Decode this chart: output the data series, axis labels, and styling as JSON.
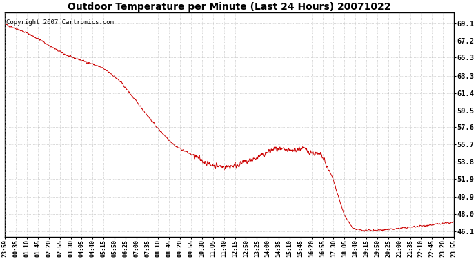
{
  "title": "Outdoor Temperature per Minute (Last 24 Hours) 20071022",
  "copyright_text": "Copyright 2007 Cartronics.com",
  "line_color": "#cc0000",
  "background_color": "#ffffff",
  "plot_bg_color": "#ffffff",
  "grid_color": "#aaaaaa",
  "y_ticks": [
    46.1,
    48.0,
    49.9,
    51.9,
    53.8,
    55.7,
    57.6,
    59.5,
    61.4,
    63.3,
    65.3,
    67.2,
    69.1
  ],
  "ylim": [
    45.5,
    70.3
  ],
  "x_tick_labels": [
    "23:59",
    "00:35",
    "01:10",
    "01:45",
    "02:20",
    "02:55",
    "03:30",
    "04:05",
    "04:40",
    "05:15",
    "05:50",
    "06:25",
    "07:00",
    "07:35",
    "08:10",
    "08:45",
    "09:20",
    "09:55",
    "10:30",
    "11:05",
    "11:40",
    "12:15",
    "12:50",
    "13:25",
    "14:00",
    "14:35",
    "15:10",
    "15:45",
    "16:20",
    "16:55",
    "17:30",
    "18:05",
    "18:40",
    "19:15",
    "19:50",
    "20:25",
    "21:00",
    "21:35",
    "22:10",
    "22:45",
    "23:20",
    "23:55"
  ],
  "n_points": 1440,
  "keypoints_t": [
    0,
    0.02,
    0.05,
    0.08,
    0.11,
    0.14,
    0.17,
    0.195,
    0.215,
    0.235,
    0.26,
    0.3,
    0.34,
    0.38,
    0.42,
    0.455,
    0.49,
    0.52,
    0.56,
    0.6,
    0.635,
    0.66,
    0.685,
    0.705,
    0.73,
    0.755,
    0.775,
    0.8,
    0.85,
    1.0
  ],
  "keypoints_v": [
    69.0,
    68.6,
    68.0,
    67.2,
    66.3,
    65.5,
    65.0,
    64.6,
    64.2,
    63.6,
    62.5,
    60.0,
    57.5,
    55.5,
    54.5,
    53.5,
    53.2,
    53.5,
    54.2,
    55.2,
    55.0,
    55.3,
    54.8,
    54.5,
    52.0,
    48.0,
    46.4,
    46.2,
    46.3,
    47.1
  ],
  "noise_seed": 42,
  "noise_base": 0.08,
  "noise_bumpy": 0.25
}
